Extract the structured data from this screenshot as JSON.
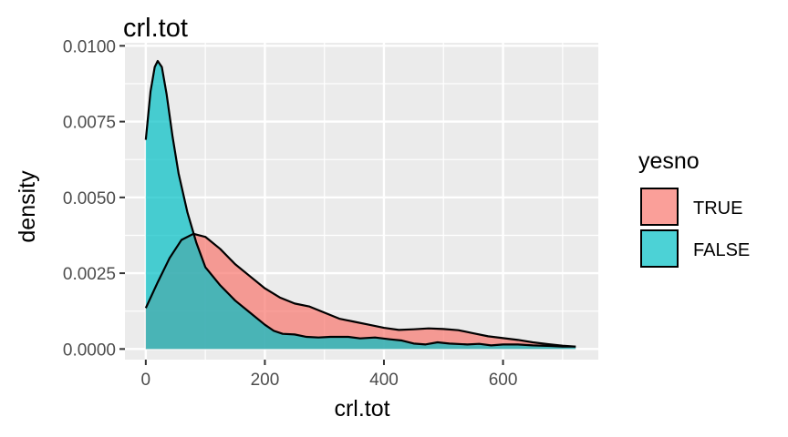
{
  "chart_data": {
    "type": "area",
    "title": "crl.tot",
    "xlabel": "crl.tot",
    "ylabel": "density",
    "xlim": [
      -35,
      760
    ],
    "ylim": [
      -0.00035,
      0.0101
    ],
    "x_ticks": [
      0,
      200,
      400,
      600
    ],
    "x_tick_labels": [
      "0",
      "200",
      "400",
      "600"
    ],
    "y_ticks": [
      0.0,
      0.0025,
      0.005,
      0.0075,
      0.01
    ],
    "y_tick_labels": [
      "0.0000",
      "0.0025",
      "0.0050",
      "0.0075",
      "0.0100"
    ],
    "grid": true,
    "legend": {
      "title": "yesno",
      "position": "right"
    },
    "series": [
      {
        "name": "TRUE",
        "color": "#F8766D",
        "points": [
          [
            0,
            0.00135
          ],
          [
            20,
            0.0022
          ],
          [
            40,
            0.003
          ],
          [
            60,
            0.0036
          ],
          [
            80,
            0.0038
          ],
          [
            100,
            0.0037
          ],
          [
            125,
            0.0033
          ],
          [
            150,
            0.0028
          ],
          [
            175,
            0.0024
          ],
          [
            200,
            0.002
          ],
          [
            225,
            0.0017
          ],
          [
            250,
            0.0015
          ],
          [
            275,
            0.0014
          ],
          [
            300,
            0.0012
          ],
          [
            325,
            0.001
          ],
          [
            350,
            0.0009
          ],
          [
            375,
            0.0008
          ],
          [
            400,
            0.0007
          ],
          [
            425,
            0.00063
          ],
          [
            450,
            0.00065
          ],
          [
            475,
            0.00068
          ],
          [
            500,
            0.00066
          ],
          [
            525,
            0.00062
          ],
          [
            550,
            0.00052
          ],
          [
            575,
            0.00042
          ],
          [
            600,
            0.00036
          ],
          [
            625,
            0.0003
          ],
          [
            650,
            0.00022
          ],
          [
            675,
            0.00016
          ],
          [
            700,
            0.00011
          ],
          [
            722,
            8e-05
          ]
        ]
      },
      {
        "name": "FALSE",
        "color": "#00BFC4",
        "points": [
          [
            0,
            0.0069
          ],
          [
            8,
            0.0085
          ],
          [
            15,
            0.0093
          ],
          [
            20,
            0.0095
          ],
          [
            27,
            0.0093
          ],
          [
            35,
            0.0084
          ],
          [
            45,
            0.007
          ],
          [
            55,
            0.0058
          ],
          [
            70,
            0.0045
          ],
          [
            85,
            0.0035
          ],
          [
            100,
            0.0027
          ],
          [
            125,
            0.0021
          ],
          [
            150,
            0.0016
          ],
          [
            175,
            0.0012
          ],
          [
            200,
            0.0008
          ],
          [
            215,
            0.0006
          ],
          [
            230,
            0.0005
          ],
          [
            250,
            0.00048
          ],
          [
            270,
            0.0004
          ],
          [
            290,
            0.00038
          ],
          [
            310,
            0.0004
          ],
          [
            340,
            0.0004
          ],
          [
            360,
            0.00035
          ],
          [
            385,
            0.00038
          ],
          [
            410,
            0.00032
          ],
          [
            430,
            0.00028
          ],
          [
            450,
            0.00018
          ],
          [
            470,
            0.00015
          ],
          [
            490,
            0.00022
          ],
          [
            510,
            0.00018
          ],
          [
            540,
            0.00015
          ],
          [
            560,
            0.00017
          ],
          [
            580,
            0.00012
          ],
          [
            600,
            0.00015
          ],
          [
            625,
            0.00015
          ],
          [
            650,
            0.00012
          ],
          [
            680,
            0.0001
          ],
          [
            700,
            8e-05
          ],
          [
            722,
            8e-05
          ]
        ]
      }
    ]
  }
}
